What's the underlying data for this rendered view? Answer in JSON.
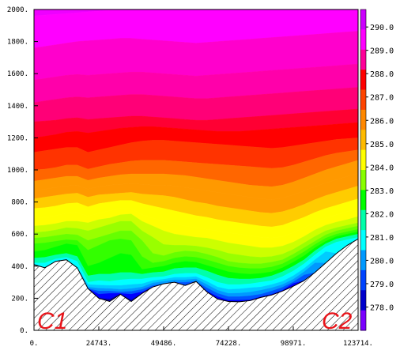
{
  "chart_data": {
    "type": "area",
    "title": "",
    "xlabel": "",
    "ylabel": "",
    "xlim": [
      0,
      123714
    ],
    "ylim": [
      0,
      2000
    ],
    "x_ticks": [
      0,
      24743,
      49486,
      74228,
      98971,
      123714
    ],
    "x_tick_labels": [
      "0.",
      "24743.",
      "49486.",
      "74228.",
      "98971.",
      "123714."
    ],
    "y_ticks": [
      0,
      200,
      400,
      600,
      800,
      1000,
      1200,
      1400,
      1600,
      1800,
      2000
    ],
    "y_tick_labels": [
      "0.",
      "200.",
      "400.",
      "600.",
      "800.",
      "1000.",
      "1200.",
      "1400.",
      "1600.",
      "1800.",
      "2000."
    ],
    "x_samples": [
      0,
      4124,
      8247,
      12371,
      16495,
      20619,
      24743,
      28866,
      32990,
      37114,
      41238,
      45362,
      49486,
      53609,
      57733,
      61857,
      65981,
      70105,
      74228,
      78352,
      82476,
      86600,
      90723,
      94847,
      98971,
      103095,
      107219,
      111343,
      115466,
      119590,
      123714
    ],
    "terrain": [
      410,
      390,
      430,
      440,
      390,
      260,
      200,
      180,
      225,
      180,
      230,
      270,
      290,
      300,
      280,
      305,
      240,
      195,
      180,
      178,
      185,
      205,
      220,
      245,
      275,
      310,
      360,
      420,
      480,
      530,
      570
    ],
    "contour_levels": [
      277.5,
      278.0,
      278.5,
      279.0,
      279.5,
      280.0,
      280.5,
      281.0,
      281.5,
      282.0,
      282.5,
      283.0,
      283.5,
      284.0,
      284.5,
      285.0,
      285.5,
      286.0,
      286.5,
      287.0,
      287.5,
      288.0,
      288.5,
      289.0,
      289.5,
      290.0,
      290.5
    ],
    "isotherm_heights": [
      [
        null,
        null,
        null,
        null,
        null,
        null,
        null,
        180,
        200,
        175,
        210,
        240,
        250,
        260,
        250,
        260,
        210,
        170,
        150,
        148,
        150,
        150,
        185,
        215,
        null,
        null,
        null,
        null,
        null,
        null,
        null
      ],
      [
        null,
        null,
        null,
        null,
        null,
        null,
        null,
        195,
        215,
        190,
        225,
        255,
        262,
        273,
        265,
        275,
        228,
        190,
        170,
        168,
        172,
        172,
        205,
        235,
        null,
        null,
        null,
        null,
        null,
        null,
        null
      ],
      [
        null,
        null,
        null,
        null,
        null,
        null,
        225,
        230,
        230,
        225,
        240,
        265,
        272,
        285,
        282,
        290,
        245,
        210,
        188,
        188,
        190,
        210,
        225,
        250,
        292,
        null,
        null,
        null,
        null,
        null,
        null
      ],
      [
        null,
        null,
        null,
        null,
        null,
        null,
        245,
        245,
        240,
        243,
        255,
        280,
        290,
        300,
        300,
        305,
        265,
        230,
        210,
        210,
        215,
        225,
        245,
        268,
        302,
        345,
        null,
        null,
        null,
        null,
        null
      ],
      [
        null,
        null,
        null,
        null,
        null,
        270,
        262,
        260,
        255,
        260,
        270,
        295,
        305,
        315,
        315,
        320,
        285,
        250,
        230,
        232,
        238,
        250,
        265,
        285,
        318,
        365,
        420,
        null,
        null,
        null,
        null
      ],
      [
        null,
        null,
        null,
        null,
        null,
        285,
        282,
        280,
        280,
        285,
        290,
        310,
        318,
        330,
        330,
        335,
        305,
        270,
        255,
        258,
        265,
        270,
        285,
        305,
        340,
        385,
        440,
        490,
        null,
        null,
        null
      ],
      [
        420,
        420,
        445,
        455,
        430,
        300,
        310,
        305,
        315,
        320,
        320,
        330,
        335,
        350,
        355,
        355,
        330,
        300,
        285,
        285,
        290,
        300,
        310,
        335,
        370,
        415,
        470,
        520,
        550,
        565,
        580
      ],
      [
        450,
        455,
        470,
        480,
        460,
        340,
        350,
        350,
        360,
        360,
        350,
        360,
        365,
        385,
        390,
        390,
        370,
        345,
        325,
        320,
        320,
        325,
        340,
        365,
        400,
        440,
        495,
        540,
        570,
        585,
        600
      ],
      [
        490,
        500,
        520,
        540,
        530,
        400,
        420,
        450,
        480,
        470,
        380,
        390,
        400,
        420,
        430,
        425,
        405,
        385,
        365,
        355,
        350,
        355,
        365,
        390,
        425,
        465,
        515,
        555,
        585,
        600,
        615
      ],
      [
        540,
        545,
        555,
        565,
        560,
        500,
        530,
        560,
        570,
        560,
        460,
        420,
        430,
        450,
        460,
        455,
        440,
        420,
        400,
        390,
        385,
        385,
        395,
        415,
        450,
        490,
        535,
        575,
        600,
        615,
        630
      ],
      [
        575,
        580,
        590,
        600,
        595,
        560,
        580,
        600,
        620,
        620,
        560,
        480,
        465,
        485,
        495,
        490,
        475,
        455,
        430,
        420,
        415,
        415,
        425,
        440,
        475,
        515,
        555,
        595,
        620,
        635,
        650
      ],
      [
        610,
        615,
        625,
        640,
        635,
        620,
        640,
        660,
        680,
        680,
        620,
        580,
        535,
        530,
        530,
        525,
        515,
        500,
        480,
        470,
        460,
        455,
        460,
        475,
        505,
        545,
        585,
        620,
        640,
        655,
        670
      ],
      [
        650,
        655,
        665,
        680,
        680,
        670,
        690,
        700,
        720,
        725,
        680,
        650,
        620,
        600,
        590,
        580,
        575,
        560,
        545,
        535,
        525,
        515,
        515,
        525,
        550,
        585,
        625,
        655,
        675,
        690,
        710
      ],
      [
        700,
        705,
        715,
        730,
        735,
        710,
        730,
        745,
        760,
        760,
        720,
        700,
        680,
        665,
        650,
        640,
        630,
        620,
        610,
        600,
        590,
        580,
        575,
        585,
        610,
        640,
        675,
        700,
        720,
        740,
        760
      ],
      [
        760,
        765,
        775,
        790,
        795,
        770,
        790,
        800,
        810,
        810,
        790,
        775,
        760,
        745,
        730,
        715,
        705,
        690,
        680,
        670,
        660,
        650,
        645,
        655,
        680,
        705,
        735,
        760,
        780,
        800,
        820
      ],
      [
        820,
        830,
        840,
        850,
        855,
        830,
        845,
        850,
        855,
        860,
        850,
        845,
        840,
        830,
        815,
        800,
        790,
        775,
        765,
        755,
        745,
        735,
        730,
        740,
        760,
        785,
        815,
        840,
        860,
        880,
        900
      ],
      [
        870,
        880,
        890,
        900,
        905,
        880,
        895,
        905,
        910,
        915,
        910,
        905,
        905,
        900,
        890,
        880,
        870,
        860,
        850,
        840,
        830,
        820,
        815,
        825,
        845,
        870,
        895,
        920,
        940,
        960,
        980
      ],
      [
        930,
        940,
        950,
        960,
        960,
        935,
        950,
        960,
        970,
        975,
        975,
        975,
        975,
        970,
        965,
        955,
        945,
        935,
        925,
        915,
        905,
        900,
        895,
        905,
        925,
        950,
        975,
        1000,
        1020,
        1040,
        1060
      ],
      [
        1000,
        1005,
        1015,
        1030,
        1030,
        1005,
        1020,
        1035,
        1045,
        1055,
        1060,
        1060,
        1060,
        1055,
        1050,
        1045,
        1040,
        1035,
        1030,
        1025,
        1020,
        1015,
        1010,
        1015,
        1030,
        1050,
        1070,
        1090,
        1105,
        1115,
        1125
      ],
      [
        1110,
        1120,
        1130,
        1140,
        1140,
        1110,
        1125,
        1140,
        1155,
        1170,
        1180,
        1185,
        1185,
        1180,
        1175,
        1170,
        1165,
        1160,
        1155,
        1150,
        1145,
        1140,
        1135,
        1140,
        1150,
        1160,
        1170,
        1180,
        1190,
        1195,
        1200
      ],
      [
        1200,
        1210,
        1220,
        1235,
        1240,
        1230,
        1240,
        1250,
        1260,
        1265,
        1270,
        1270,
        1265,
        1260,
        1255,
        1250,
        1245,
        1240,
        1240,
        1240,
        1245,
        1250,
        1255,
        1260,
        1265,
        1270,
        1275,
        1280,
        1285,
        1290,
        1295
      ],
      [
        1300,
        1305,
        1310,
        1320,
        1325,
        1315,
        1320,
        1325,
        1330,
        1335,
        1335,
        1330,
        1325,
        1320,
        1315,
        1310,
        1310,
        1315,
        1320,
        1325,
        1330,
        1335,
        1340,
        1345,
        1350,
        1355,
        1360,
        1365,
        1370,
        1375,
        1380
      ],
      [
        1420,
        1430,
        1440,
        1450,
        1455,
        1450,
        1455,
        1460,
        1465,
        1470,
        1470,
        1465,
        1460,
        1455,
        1450,
        1445,
        1445,
        1450,
        1455,
        1460,
        1465,
        1470,
        1475,
        1480,
        1485,
        1490,
        1495,
        1500,
        1505,
        1510,
        1515
      ],
      [
        1560,
        1570,
        1580,
        1590,
        1595,
        1590,
        1595,
        1600,
        1605,
        1610,
        1610,
        1605,
        1600,
        1595,
        1590,
        1585,
        1590,
        1595,
        1600,
        1605,
        1610,
        1615,
        1620,
        1625,
        1630,
        1635,
        1640,
        1645,
        1650,
        1655,
        1660
      ],
      [
        1760,
        1770,
        1780,
        1790,
        1800,
        1805,
        1810,
        1815,
        1820,
        1820,
        1815,
        1810,
        1805,
        1800,
        1795,
        1790,
        1795,
        1800,
        1805,
        1810,
        1815,
        1820,
        1825,
        1830,
        1835,
        1840,
        1845,
        1850,
        1855,
        1860,
        1865
      ],
      [
        1960,
        1965,
        1970,
        1975,
        1980,
        1985,
        1990,
        1995,
        2000,
        2000,
        2000,
        2000,
        2000,
        2000,
        2000,
        2000,
        2000,
        2000,
        2000,
        2000,
        2000,
        2000,
        2000,
        2000,
        2000,
        2000,
        2000,
        2000,
        2000,
        2000,
        2000
      ],
      [
        2000,
        2000,
        2000,
        2000,
        2000,
        2000,
        2000,
        2000,
        2000,
        2000,
        2000,
        2000,
        2000,
        2000,
        2000,
        2000,
        2000,
        2000,
        2000,
        2000,
        2000,
        2000,
        2000,
        2000,
        2000,
        2000,
        2000,
        2000,
        2000,
        2000,
        2000
      ]
    ],
    "colorbar": {
      "labels": [
        "290.0",
        "289.0",
        "288.0",
        "287.0",
        "286.0",
        "285.0",
        "284.0",
        "283.0",
        "282.0",
        "281.0",
        "280.0",
        "279.0",
        "278.0"
      ],
      "label_values": [
        290.0,
        289.0,
        288.0,
        287.0,
        286.0,
        285.0,
        284.0,
        283.0,
        282.0,
        281.0,
        280.0,
        279.0,
        278.0
      ],
      "band_colors": [
        "#cc00ff",
        "#ff00ff",
        "#ff0099",
        "#ff0000",
        "#ff4400",
        "#ff8800",
        "#ffbb00",
        "#ffff00",
        "#88ff00",
        "#00ff00",
        "#00ffaa",
        "#00ffff",
        "#0099ff",
        "#0044ff",
        "#0000cc",
        "#7a00ff"
      ]
    },
    "annotations": [
      "C1",
      "C2"
    ],
    "band_colors_plot": [
      "#7a00ff",
      "#0000aa",
      "#0000ff",
      "#0055ff",
      "#0099ff",
      "#00ccff",
      "#00ffff",
      "#00ffaa",
      "#00ff00",
      "#33ff00",
      "#66ff00",
      "#99ff00",
      "#ccff00",
      "#ffff00",
      "#ffff00",
      "#ffcc00",
      "#ff9900",
      "#ff9900",
      "#ff6600",
      "#ff3300",
      "#ff0000",
      "#ff0033",
      "#ff0077",
      "#ff00aa",
      "#ff00cc",
      "#ff00ff",
      "#ee00ff",
      "#ee00ff"
    ]
  }
}
